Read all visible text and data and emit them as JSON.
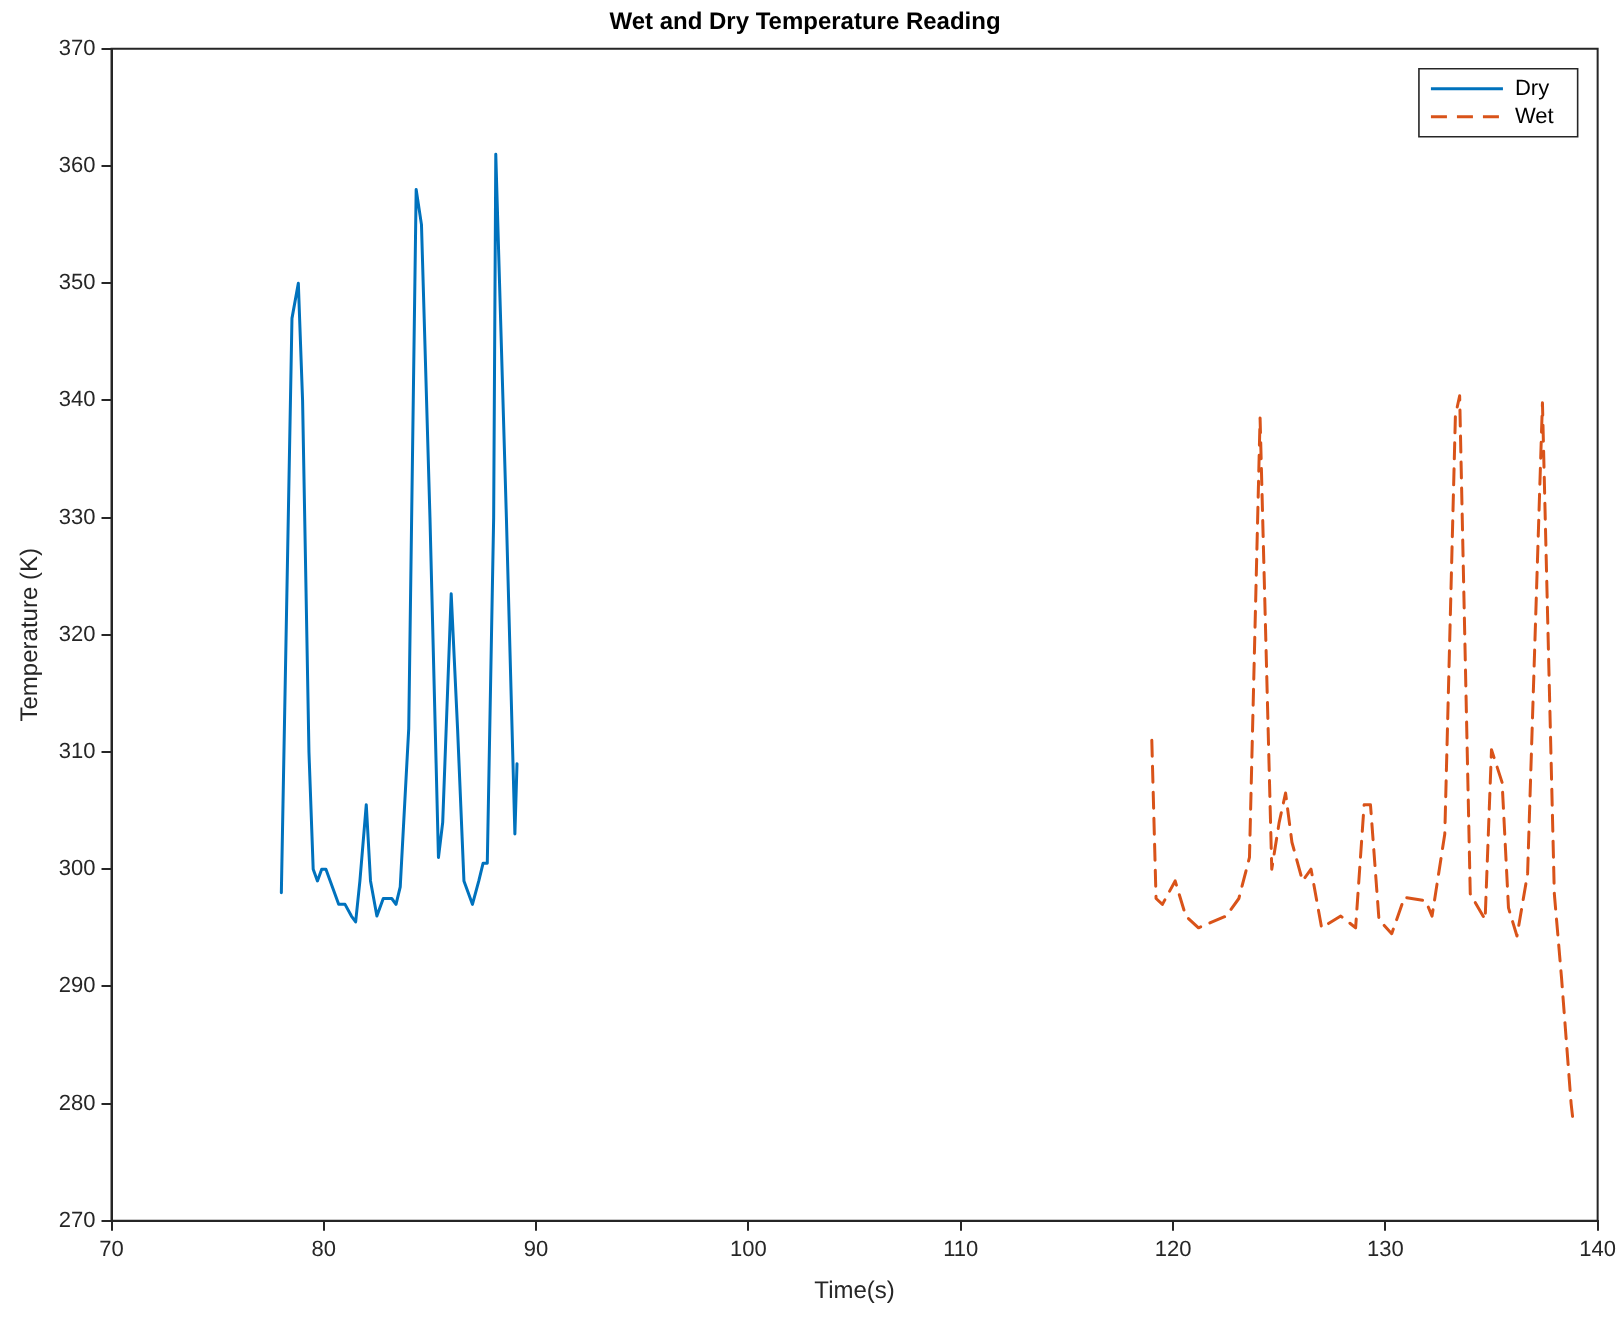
{
  "chart_data": {
    "type": "line",
    "title": "Wet and Dry Temperature Reading",
    "xlabel": "Time(s)",
    "ylabel": "Temperature (K)",
    "xlim": [
      70,
      140
    ],
    "xticks": [
      70,
      80,
      90,
      100,
      110,
      120,
      130,
      140
    ],
    "ylim": [
      270,
      370
    ],
    "yticks": [
      270,
      280,
      290,
      300,
      310,
      320,
      330,
      340,
      350,
      360,
      370
    ],
    "grid": false,
    "legend": "top right",
    "marker": "none",
    "series": [
      {
        "name": "Dry",
        "color": "#0072bd",
        "line_style": "solid",
        "x": [
          78.0,
          78.5,
          78.8,
          79.0,
          79.3,
          79.5,
          79.7,
          79.9,
          80.1,
          80.4,
          80.7,
          81.0,
          81.3,
          81.5,
          81.7,
          82.0,
          82.2,
          82.5,
          82.8,
          83.2,
          83.4,
          83.6,
          84.0,
          84.35,
          84.6,
          85.0,
          85.4,
          85.6,
          86.0,
          86.3,
          86.6,
          87.0,
          87.3,
          87.5,
          87.7,
          88.0,
          88.1,
          88.6,
          89.0,
          89.1
        ],
        "values": [
          298,
          347,
          350,
          340,
          310,
          300,
          299,
          300,
          300,
          298.5,
          297,
          297,
          296,
          295.5,
          299,
          305.5,
          299,
          296,
          297.5,
          297.5,
          297,
          298.5,
          312,
          358,
          355,
          330,
          301,
          304,
          323.5,
          312,
          299,
          297,
          299,
          300.5,
          300.5,
          330,
          361,
          330,
          303,
          309
        ]
      },
      {
        "name": "Wet",
        "color": "#d95319",
        "line_style": "dashed",
        "x": [
          119.0,
          119.2,
          119.5,
          120.1,
          120.6,
          121.2,
          122.5,
          123.1,
          123.6,
          124.1,
          124.65,
          125.0,
          125.3,
          125.6,
          126.1,
          126.5,
          127.0,
          127.9,
          128.6,
          129.0,
          129.3,
          129.7,
          130.3,
          130.9,
          131.9,
          132.2,
          132.8,
          133.3,
          133.5,
          134.0,
          134.7,
          135.0,
          135.5,
          135.8,
          136.2,
          136.7,
          137.4,
          137.96,
          138.3,
          138.75,
          138.85
        ],
        "values": [
          311,
          297.5,
          297,
          299,
          296,
          295,
          296,
          297.5,
          301,
          338.5,
          300,
          304,
          306.5,
          302.3,
          299,
          300,
          295,
          296,
          295,
          305.5,
          305.5,
          295.7,
          294.5,
          297.6,
          297.3,
          296,
          303,
          338.7,
          340.4,
          297.9,
          295.7,
          310.2,
          307.4,
          296.7,
          294.3,
          299.6,
          339.8,
          297.9,
          290.7,
          280,
          278.4
        ]
      }
    ]
  }
}
